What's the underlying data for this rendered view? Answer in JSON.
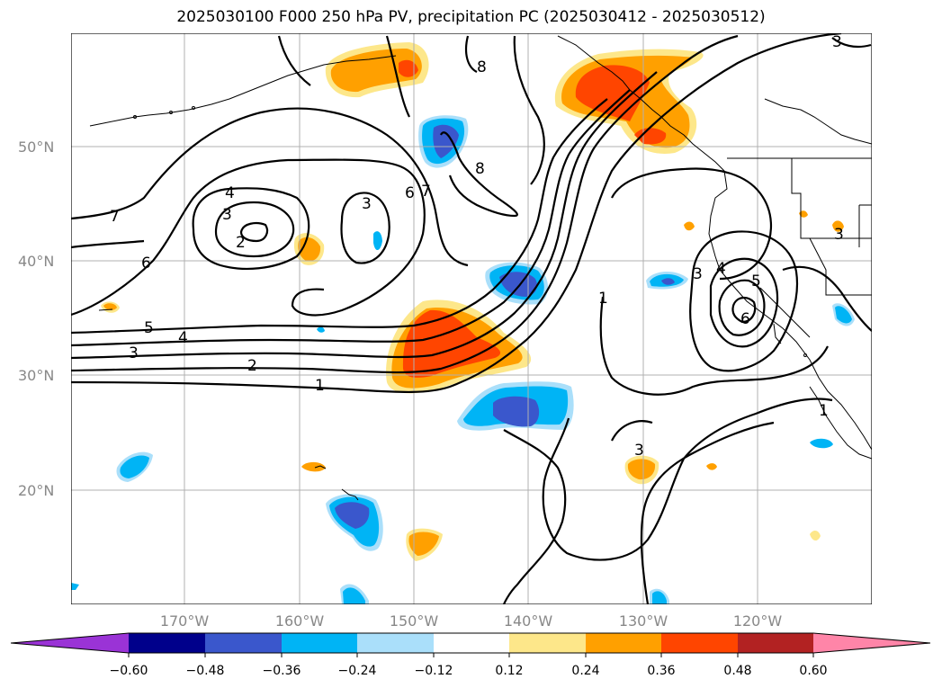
{
  "title": "2025030100 F000 250 hPa PV, precipitation PC (2025030412 - 2025030512)",
  "map": {
    "lat_labels": [
      "50°N",
      "40°N",
      "30°N",
      "20°N"
    ],
    "lon_labels": [
      "170°W",
      "160°W",
      "150°W",
      "140°W",
      "130°W",
      "120°W"
    ]
  },
  "contour_labels": [
    "1",
    "2",
    "3",
    "4",
    "5",
    "6",
    "7",
    "8",
    "2",
    "3",
    "4",
    "3",
    "6",
    "7",
    "8",
    "1",
    "3",
    "4",
    "5",
    "6",
    "3",
    "3",
    "3",
    "1"
  ],
  "colorbar": {
    "ticks": [
      "−0.60",
      "−0.48",
      "−0.36",
      "−0.24",
      "−0.12",
      "0.12",
      "0.24",
      "0.36",
      "0.48",
      "0.60"
    ],
    "colors": [
      "#9a33d6",
      "#00008b",
      "#3a57cc",
      "#00b4f5",
      "#aadffa",
      "#ffffff",
      "#fde78a",
      "#ffa000",
      "#ff4500",
      "#b22222",
      "#ff85a8"
    ]
  },
  "colors": {
    "pos_light": "#fde78a",
    "pos_mid": "#ffa000",
    "pos_high": "#ff4500",
    "neg_light": "#aadffa",
    "neg_mid": "#00b4f5",
    "neg_high": "#3a57cc",
    "contour": "#000000",
    "grid": "#b0b0b0"
  }
}
